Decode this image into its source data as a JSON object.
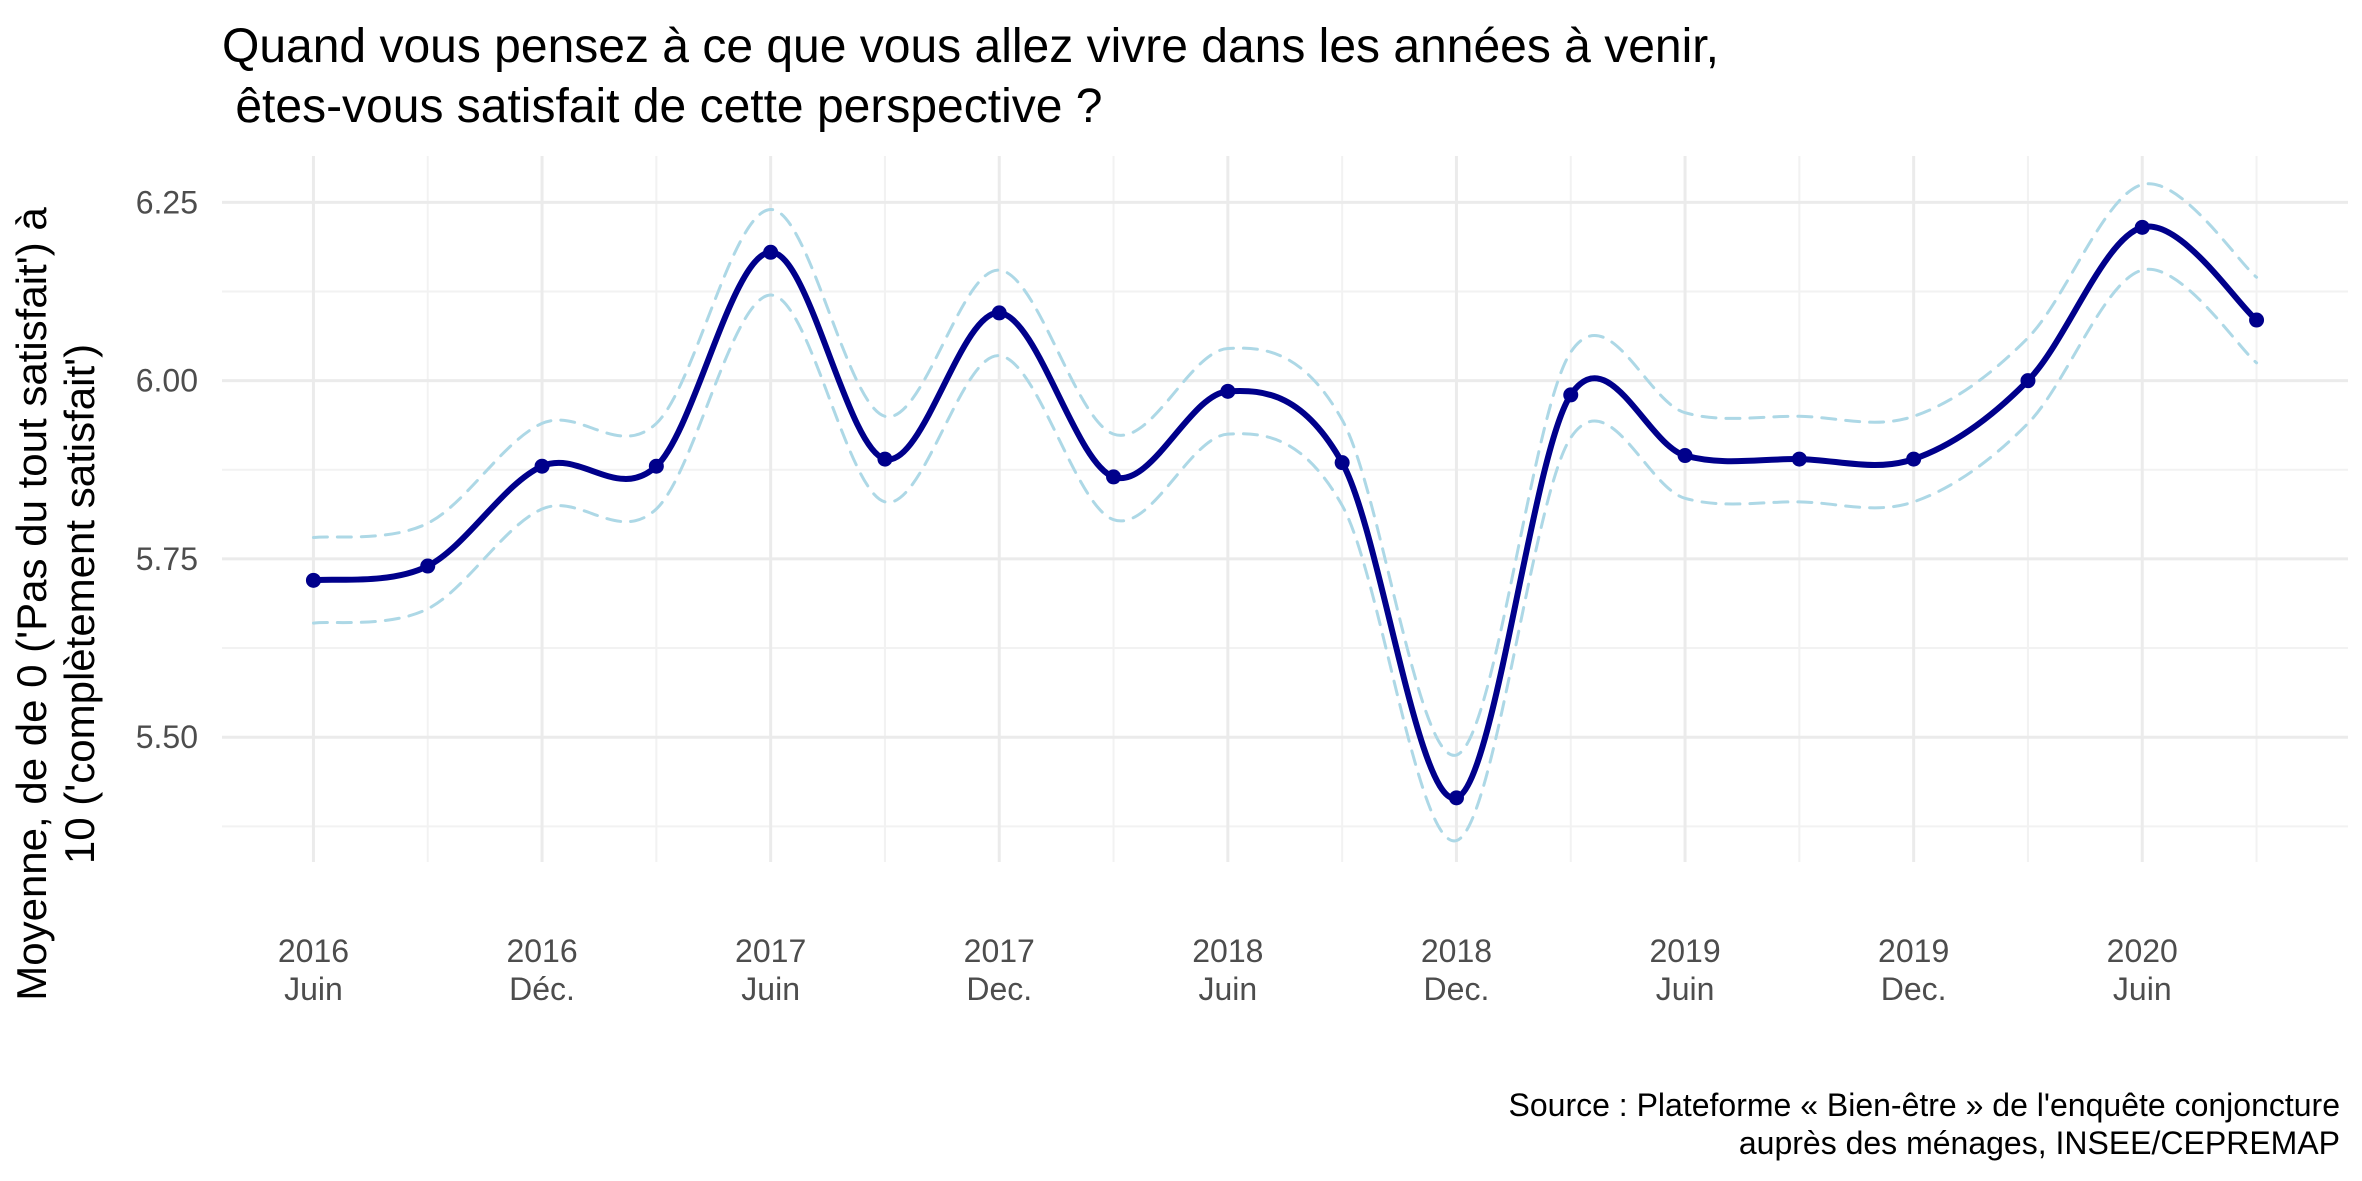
{
  "chart_data": {
    "type": "line",
    "title_lines": [
      "Quand vous pensez à ce que vous allez vivre dans les années à venir,",
      " êtes-vous satisfait de cette perspective ?"
    ],
    "ylabel_lines": [
      "Moyenne, de de 0 ('Pas du tout satisfait') à",
      "10 ('complètement satisfait')"
    ],
    "xlabel": "",
    "caption_lines": [
      "Source : Plateforme « Bien-être » de l'enquête conjoncture",
      "auprès des ménages, INSEE/CEPREMAP"
    ],
    "x_ticks": [
      {
        "pos": 0,
        "year": "2016",
        "period": "Juin"
      },
      {
        "pos": 2,
        "year": "2016",
        "period": "Déc."
      },
      {
        "pos": 4,
        "year": "2017",
        "period": "Juin"
      },
      {
        "pos": 6,
        "year": "2017",
        "period": "Dec."
      },
      {
        "pos": 8,
        "year": "2018",
        "period": "Juin"
      },
      {
        "pos": 10,
        "year": "2018",
        "period": "Dec."
      },
      {
        "pos": 12,
        "year": "2019",
        "period": "Juin"
      },
      {
        "pos": 14,
        "year": "2019",
        "period": "Dec."
      },
      {
        "pos": 16,
        "year": "2020",
        "period": "Juin"
      }
    ],
    "y_ticks": [
      5.5,
      5.75,
      6.0,
      6.25
    ],
    "y_tick_labels": [
      "5.50",
      "5.75",
      "6.00",
      "6.25"
    ],
    "xlim": [
      -0.8,
      17.8
    ],
    "ylim": [
      5.325,
      6.315
    ],
    "grid": true,
    "legend": "none",
    "series": [
      {
        "role": "mean",
        "color": "#00008b",
        "style": "solid",
        "points": [
          [
            0,
            5.72
          ],
          [
            1,
            5.74
          ],
          [
            2,
            5.88
          ],
          [
            3,
            5.88
          ],
          [
            4,
            6.18
          ],
          [
            5,
            5.89
          ],
          [
            6,
            6.095
          ],
          [
            7,
            5.865
          ],
          [
            8,
            5.985
          ],
          [
            9,
            5.885
          ],
          [
            10,
            5.415
          ],
          [
            11,
            5.98
          ],
          [
            12,
            5.895
          ],
          [
            13,
            5.89
          ],
          [
            14,
            5.89
          ],
          [
            15,
            6.0
          ],
          [
            16,
            6.215
          ],
          [
            17,
            6.085
          ]
        ],
        "markers": true
      },
      {
        "role": "upper-bound",
        "color": "#add8e6",
        "style": "dashed",
        "points": [
          [
            0,
            5.78
          ],
          [
            1,
            5.8
          ],
          [
            2,
            5.94
          ],
          [
            3,
            5.94
          ],
          [
            4,
            6.24
          ],
          [
            5,
            5.95
          ],
          [
            6,
            6.155
          ],
          [
            7,
            5.925
          ],
          [
            8,
            6.045
          ],
          [
            9,
            5.945
          ],
          [
            10,
            5.475
          ],
          [
            11,
            6.04
          ],
          [
            12,
            5.955
          ],
          [
            13,
            5.95
          ],
          [
            14,
            5.95
          ],
          [
            15,
            6.06
          ],
          [
            16,
            6.275
          ],
          [
            17,
            6.145
          ]
        ],
        "markers": false
      },
      {
        "role": "lower-bound",
        "color": "#add8e6",
        "style": "dashed",
        "points": [
          [
            0,
            5.66
          ],
          [
            1,
            5.68
          ],
          [
            2,
            5.82
          ],
          [
            3,
            5.82
          ],
          [
            4,
            6.12
          ],
          [
            5,
            5.83
          ],
          [
            6,
            6.035
          ],
          [
            7,
            5.805
          ],
          [
            8,
            5.925
          ],
          [
            9,
            5.825
          ],
          [
            10,
            5.355
          ],
          [
            11,
            5.92
          ],
          [
            12,
            5.835
          ],
          [
            13,
            5.83
          ],
          [
            14,
            5.83
          ],
          [
            15,
            5.94
          ],
          [
            16,
            6.155
          ],
          [
            17,
            6.025
          ]
        ],
        "markers": false
      }
    ]
  }
}
